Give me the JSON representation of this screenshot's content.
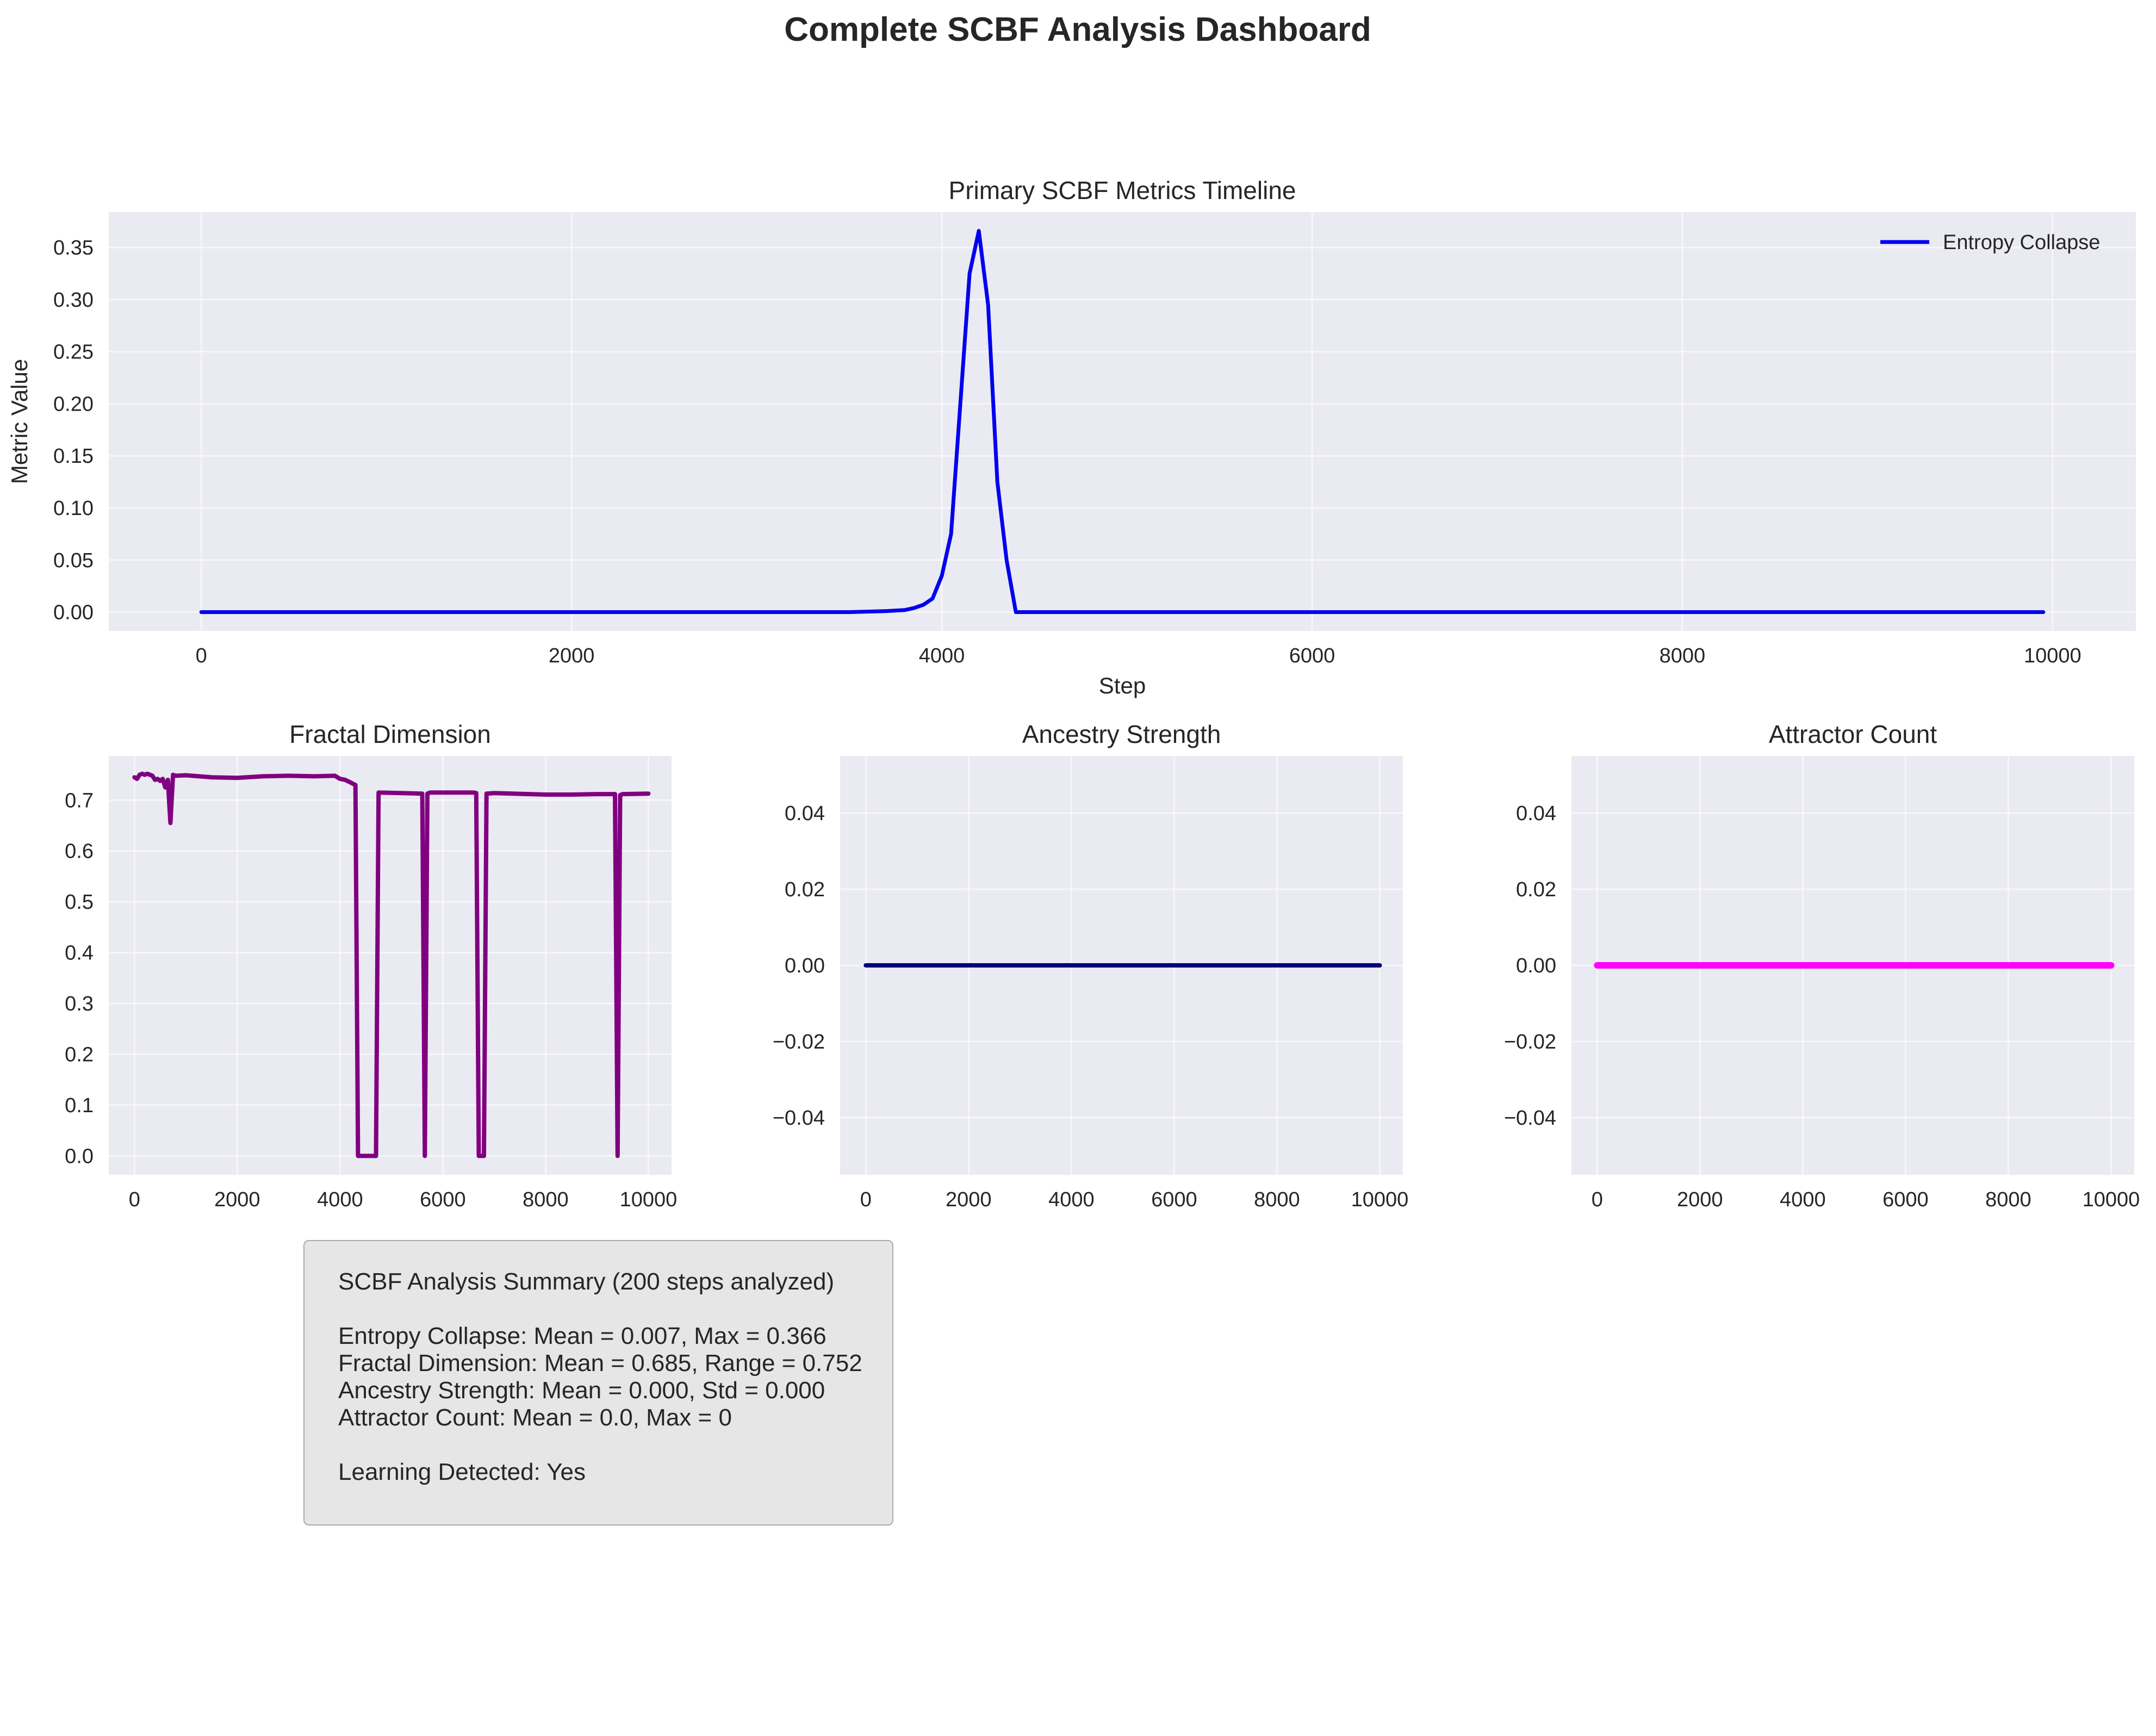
{
  "figure_title": "Complete SCBF Analysis Dashboard",
  "chart_data": [
    {
      "id": "primary",
      "type": "line",
      "title": "Primary SCBF Metrics Timeline",
      "xlabel": "Step",
      "ylabel": "Metric Value",
      "xlim": [
        -500,
        10450
      ],
      "ylim": [
        -0.018,
        0.384
      ],
      "xticks": [
        0,
        2000,
        4000,
        6000,
        8000,
        10000
      ],
      "yticks": [
        0.0,
        0.05,
        0.1,
        0.15,
        0.2,
        0.25,
        0.3,
        0.35
      ],
      "ytick_labels": [
        "0.00",
        "0.05",
        "0.10",
        "0.15",
        "0.20",
        "0.25",
        "0.30",
        "0.35"
      ],
      "grid": true,
      "legend": "top-right",
      "series": [
        {
          "name": "Entropy Collapse",
          "color": "#0000ee",
          "x": [
            0,
            3500,
            3700,
            3800,
            3850,
            3900,
            3950,
            4000,
            4050,
            4100,
            4150,
            4200,
            4250,
            4300,
            4350,
            4400,
            6000,
            6700,
            9950
          ],
          "y": [
            0.0,
            0.0,
            0.001,
            0.002,
            0.004,
            0.007,
            0.013,
            0.035,
            0.075,
            0.2,
            0.325,
            0.366,
            0.295,
            0.125,
            0.05,
            0.0,
            0.0,
            0.0,
            0.0
          ]
        }
      ]
    },
    {
      "id": "fractal",
      "type": "line",
      "title": "Fractal Dimension",
      "xlim": [
        -500,
        10450
      ],
      "ylim": [
        -0.037,
        0.787
      ],
      "xticks": [
        0,
        2000,
        4000,
        6000,
        8000,
        10000
      ],
      "yticks": [
        0.0,
        0.1,
        0.2,
        0.3,
        0.4,
        0.5,
        0.6,
        0.7
      ],
      "ytick_labels": [
        "0.0",
        "0.1",
        "0.2",
        "0.3",
        "0.4",
        "0.5",
        "0.6",
        "0.7"
      ],
      "grid": true,
      "series": [
        {
          "color": "#800080",
          "x": [
            0,
            50,
            100,
            150,
            200,
            250,
            300,
            350,
            400,
            450,
            500,
            550,
            600,
            650,
            700,
            750,
            800,
            1000,
            1500,
            2000,
            2500,
            3000,
            3500,
            3900,
            4000,
            4100,
            4200,
            4300,
            4350,
            4400,
            4700,
            4750,
            5600,
            5650,
            5700,
            5750,
            6600,
            6650,
            6700,
            6750,
            6800,
            6850,
            7000,
            8000,
            8500,
            9000,
            9300,
            9350,
            9400,
            9450,
            9500,
            10000
          ],
          "y": [
            0.745,
            0.742,
            0.75,
            0.752,
            0.75,
            0.752,
            0.75,
            0.748,
            0.74,
            0.742,
            0.738,
            0.742,
            0.725,
            0.74,
            0.655,
            0.75,
            0.748,
            0.749,
            0.745,
            0.744,
            0.747,
            0.748,
            0.747,
            0.748,
            0.742,
            0.74,
            0.735,
            0.73,
            0.0,
            0.0,
            0.0,
            0.715,
            0.713,
            0.0,
            0.713,
            0.715,
            0.715,
            0.714,
            0.0,
            0.0,
            0.0,
            0.713,
            0.714,
            0.711,
            0.711,
            0.712,
            0.712,
            0.712,
            0.0,
            0.71,
            0.712,
            0.713
          ]
        }
      ]
    },
    {
      "id": "ancestry",
      "type": "line",
      "title": "Ancestry Strength",
      "xlim": [
        -500,
        10450
      ],
      "ylim": [
        -0.055,
        0.055
      ],
      "xticks": [
        0,
        2000,
        4000,
        6000,
        8000,
        10000
      ],
      "yticks": [
        -0.04,
        -0.02,
        0.0,
        0.02,
        0.04
      ],
      "ytick_labels": [
        "−0.04",
        "−0.02",
        "0.00",
        "0.02",
        "0.04"
      ],
      "grid": true,
      "series": [
        {
          "color": "#000080",
          "x": [
            0,
            10000
          ],
          "y": [
            0.0,
            0.0
          ]
        }
      ]
    },
    {
      "id": "attractor",
      "type": "line",
      "title": "Attractor Count",
      "xlim": [
        -500,
        10450
      ],
      "ylim": [
        -0.055,
        0.055
      ],
      "xticks": [
        0,
        2000,
        4000,
        6000,
        8000,
        10000
      ],
      "yticks": [
        -0.04,
        -0.02,
        0.0,
        0.02,
        0.04
      ],
      "ytick_labels": [
        "−0.04",
        "−0.02",
        "0.00",
        "0.02",
        "0.04"
      ],
      "grid": true,
      "series": [
        {
          "color": "#ff00ff",
          "x": [
            0,
            10000
          ],
          "y": [
            0.0,
            0.0
          ]
        }
      ]
    }
  ],
  "summary": {
    "heading": "SCBF Analysis Summary (200 steps analyzed)",
    "entropy": "Entropy Collapse: Mean = 0.007, Max = 0.366",
    "fractal": "Fractal Dimension: Mean = 0.685, Range = 0.752",
    "ancestry": "Ancestry Strength: Mean = 0.000, Std = 0.000",
    "attractor": "Attractor Count: Mean = 0.0, Max = 0",
    "learning": "Learning Detected: Yes"
  },
  "colors": {
    "panel_bg": "#eaeaf2",
    "grid": "#ffffff",
    "summary_bg": "#e6e6e6"
  }
}
